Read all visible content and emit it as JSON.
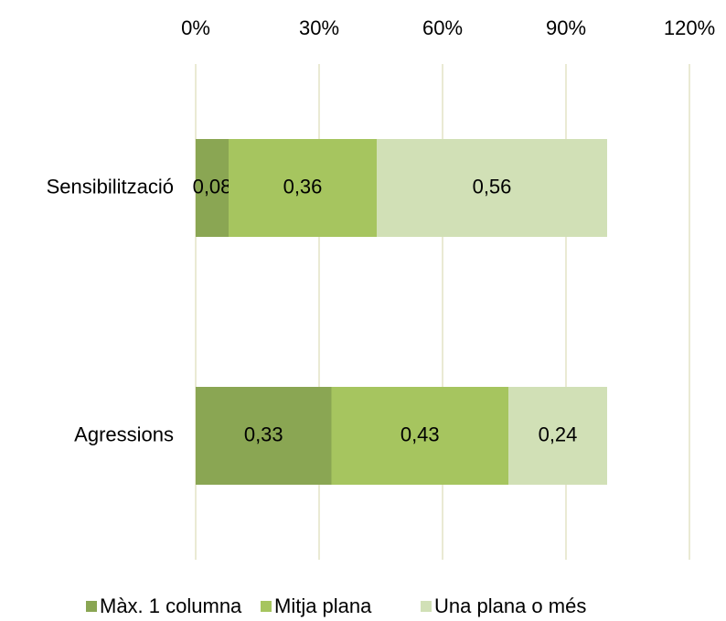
{
  "chart_data": {
    "type": "stacked_bar_horizontal",
    "categories": [
      "Sensibilització",
      "Agressions"
    ],
    "series": [
      {
        "name": "Màx. 1 columna",
        "color": "#8aa653",
        "values": [
          0.08,
          0.33
        ],
        "value_labels": [
          "0,08",
          "0,33"
        ]
      },
      {
        "name": "Mitja plana",
        "color": "#a6c55f",
        "values": [
          0.36,
          0.43
        ],
        "value_labels": [
          "0,36",
          "0,43"
        ]
      },
      {
        "name": "Una plana o més",
        "color": "#d1e0b6",
        "values": [
          0.56,
          0.24
        ],
        "value_labels": [
          "0,56",
          "0,24"
        ]
      }
    ],
    "xlim": [
      0,
      1.2
    ],
    "xticks": [
      {
        "value": 0,
        "label": "0%"
      },
      {
        "value": 0.3,
        "label": "30%"
      },
      {
        "value": 0.6,
        "label": "60%"
      },
      {
        "value": 0.9,
        "label": "90%"
      },
      {
        "value": 1.2,
        "label": "120%"
      }
    ],
    "grid": true,
    "legend": "bottom"
  }
}
